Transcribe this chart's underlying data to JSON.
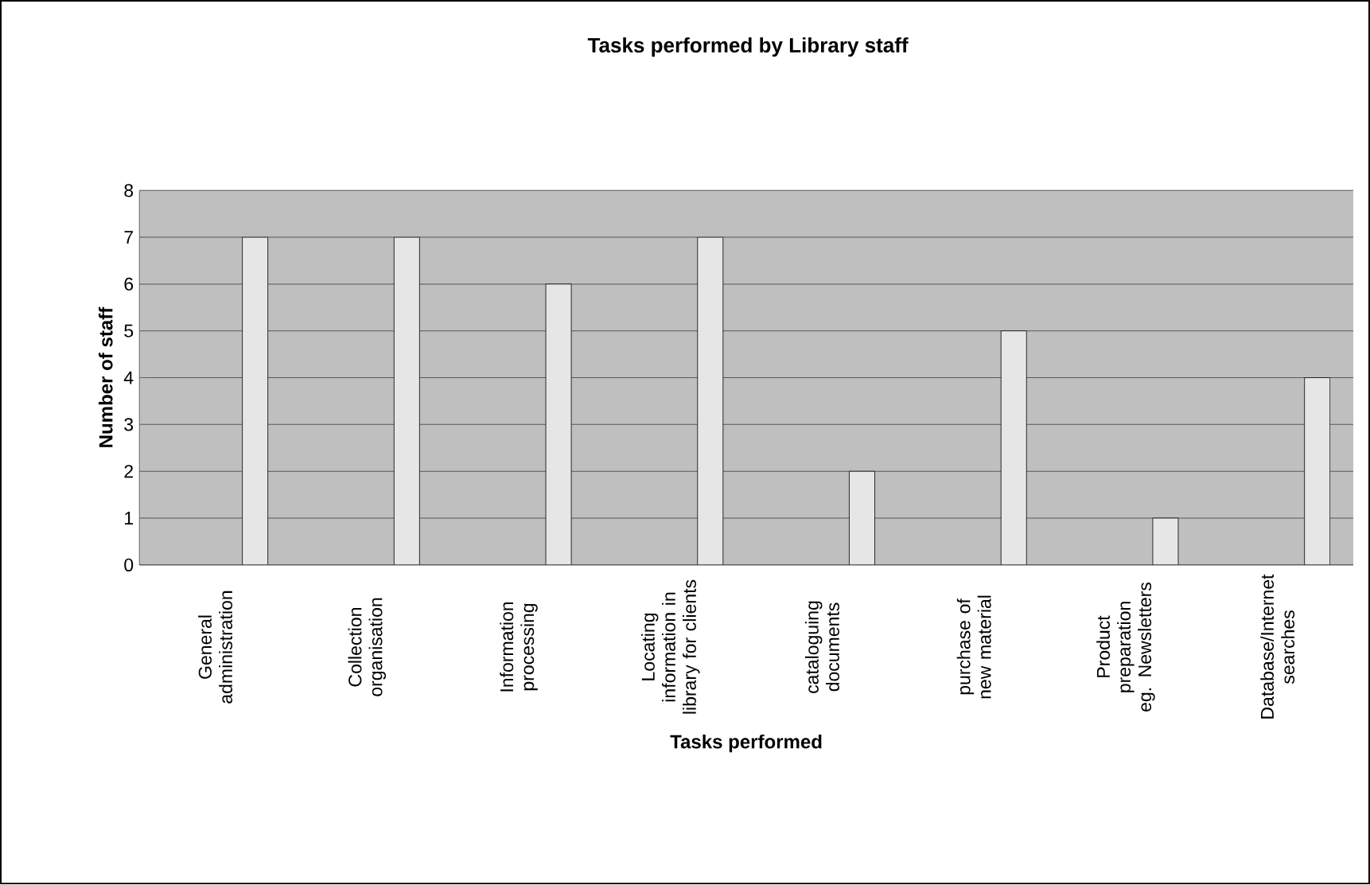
{
  "chart_data": {
    "type": "bar",
    "title": "Tasks performed by Library staff",
    "xlabel": "Tasks performed",
    "ylabel": "Number of staff",
    "categories": [
      "General administration",
      "Collection organisation",
      "Information processing",
      "Locating information in library for clients",
      "cataloguing documents",
      "purchase of new material",
      "Product preparation eg. Newsletters",
      "Database/Internet searches"
    ],
    "values": [
      7,
      7,
      6,
      7,
      2,
      5,
      1,
      4
    ],
    "color": "#e6e6e6",
    "ylim": [
      0,
      8
    ],
    "yticks": [
      0,
      1,
      2,
      3,
      4,
      5,
      6,
      7,
      8
    ],
    "grid": "y"
  }
}
